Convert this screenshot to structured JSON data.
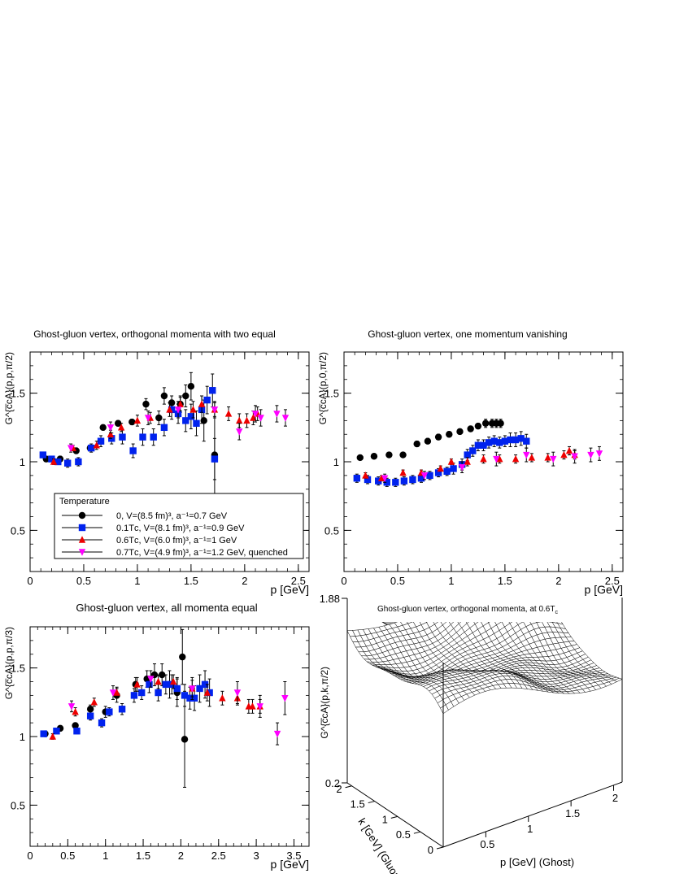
{
  "chart_data": [
    {
      "type": "scatter",
      "title": "Ghost-gluon vertex, orthogonal momenta with two equal",
      "xlabel": "p [GeV]",
      "ylabel": "G^{c̅cA}(p,p,π/2)",
      "xlim": [
        0,
        2.6
      ],
      "ylim": [
        0.2,
        1.8
      ],
      "xticks": [
        0,
        0.5,
        1,
        1.5,
        2,
        2.5
      ],
      "xticklabels": [
        "0",
        "0.5",
        "1",
        "1.5",
        "2",
        "2.5"
      ],
      "yticks": [
        0.5,
        1,
        1.5
      ],
      "yticklabels": [
        "0.5",
        "1",
        "1.5"
      ],
      "legend": {
        "title": "Temperature",
        "position": "bottom-left",
        "entries": [
          "0, V=(8.5 fm)³, a⁻¹=0.7 GeV",
          "0.1Tᴄ, V=(8.1 fm)³, a⁻¹=0.9 GeV",
          "0.6Tᴄ, V=(6.0 fm)³, a⁻¹=1 GeV",
          "0.7Tᴄ, V=(4.9 fm)³, a⁻¹=1.2 GeV, quenched"
        ]
      },
      "series": [
        {
          "name": "0",
          "marker": "circle",
          "color": "#000000",
          "x": [
            0.15,
            0.28,
            0.43,
            0.56,
            0.68,
            0.82,
            0.95,
            1.08,
            1.2,
            1.25,
            1.32,
            1.4,
            1.45,
            1.5,
            1.62,
            1.72
          ],
          "y": [
            1.02,
            1.02,
            1.08,
            1.1,
            1.25,
            1.28,
            1.29,
            1.42,
            1.32,
            1.48,
            1.43,
            1.42,
            1.48,
            1.55,
            1.3,
            1.05
          ],
          "err": [
            0.02,
            0.02,
            0.02,
            0.02,
            0.02,
            0.02,
            0.02,
            0.04,
            0.05,
            0.06,
            0.05,
            0.06,
            0.08,
            0.1,
            0.15,
            0.33
          ]
        },
        {
          "name": "0.1Tc",
          "marker": "square",
          "color": "#0022ee",
          "x": [
            0.12,
            0.2,
            0.26,
            0.35,
            0.45,
            0.57,
            0.66,
            0.76,
            0.86,
            0.96,
            1.05,
            1.15,
            1.25,
            1.32,
            1.38,
            1.45,
            1.5,
            1.55,
            1.6,
            1.65,
            1.7,
            1.72
          ],
          "y": [
            1.05,
            1.02,
            1.0,
            0.99,
            1.0,
            1.1,
            1.15,
            1.17,
            1.18,
            1.08,
            1.18,
            1.18,
            1.25,
            1.38,
            1.35,
            1.3,
            1.33,
            1.28,
            1.38,
            1.45,
            1.52,
            1.02
          ],
          "err": [
            0.02,
            0.02,
            0.02,
            0.03,
            0.03,
            0.03,
            0.04,
            0.04,
            0.05,
            0.05,
            0.06,
            0.06,
            0.06,
            0.07,
            0.07,
            0.08,
            0.09,
            0.09,
            0.1,
            0.1,
            0.12,
            0.15
          ]
        },
        {
          "name": "0.6Tc",
          "marker": "triangle-up",
          "color": "#ee0000",
          "x": [
            0.22,
            0.4,
            0.62,
            0.75,
            0.85,
            1.0,
            1.12,
            1.3,
            1.4,
            1.52,
            1.6,
            1.72,
            1.85,
            1.95,
            2.02,
            2.08,
            2.12
          ],
          "y": [
            1.0,
            1.1,
            1.12,
            1.2,
            1.25,
            1.3,
            1.32,
            1.38,
            1.42,
            1.38,
            1.42,
            1.38,
            1.35,
            1.3,
            1.3,
            1.32,
            1.35
          ],
          "err": [
            0.02,
            0.02,
            0.03,
            0.03,
            0.03,
            0.04,
            0.04,
            0.05,
            0.05,
            0.06,
            0.06,
            0.05,
            0.05,
            0.05,
            0.05,
            0.05,
            0.05
          ]
        },
        {
          "name": "0.7Tc quenched",
          "marker": "triangle-down",
          "color": "#ff00ff",
          "x": [
            0.38,
            0.75,
            1.1,
            1.38,
            1.72,
            1.95,
            2.1,
            2.15,
            2.3,
            2.38
          ],
          "y": [
            1.1,
            1.25,
            1.32,
            1.38,
            1.38,
            1.22,
            1.35,
            1.32,
            1.35,
            1.32
          ],
          "err": [
            0.03,
            0.04,
            0.05,
            0.06,
            0.06,
            0.06,
            0.06,
            0.06,
            0.06,
            0.06
          ]
        }
      ]
    },
    {
      "type": "scatter",
      "title": "Ghost-gluon vertex, one momentum vanishing",
      "xlabel": "p [GeV]",
      "ylabel": "G^{c̅cA}(p,0,π/2)",
      "xlim": [
        0,
        2.6
      ],
      "ylim": [
        0.2,
        1.8
      ],
      "xticks": [
        0,
        0.5,
        1,
        1.5,
        2,
        2.5
      ],
      "xticklabels": [
        "0",
        "0.5",
        "1",
        "1.5",
        "2",
        "2.5"
      ],
      "yticks": [
        0.5,
        1,
        1.5
      ],
      "yticklabels": [
        "0.5",
        "1",
        "1.5"
      ],
      "series": [
        {
          "name": "0",
          "marker": "circle",
          "color": "#000000",
          "x": [
            0.15,
            0.28,
            0.42,
            0.55,
            0.68,
            0.78,
            0.88,
            0.98,
            1.08,
            1.18,
            1.25,
            1.32,
            1.38,
            1.42,
            1.46
          ],
          "y": [
            1.03,
            1.04,
            1.05,
            1.05,
            1.13,
            1.15,
            1.18,
            1.2,
            1.22,
            1.24,
            1.26,
            1.28,
            1.28,
            1.28,
            1.28
          ],
          "err": [
            0.01,
            0.01,
            0.01,
            0.01,
            0.02,
            0.02,
            0.02,
            0.02,
            0.02,
            0.02,
            0.02,
            0.03,
            0.03,
            0.03,
            0.03
          ]
        },
        {
          "name": "0.1Tc",
          "marker": "square",
          "color": "#0022ee",
          "x": [
            0.12,
            0.22,
            0.32,
            0.4,
            0.48,
            0.56,
            0.64,
            0.72,
            0.8,
            0.88,
            0.96,
            1.02,
            1.1,
            1.15,
            1.2,
            1.25,
            1.3,
            1.35,
            1.4,
            1.45,
            1.5,
            1.55,
            1.6,
            1.65,
            1.7
          ],
          "y": [
            0.88,
            0.87,
            0.86,
            0.85,
            0.85,
            0.86,
            0.87,
            0.88,
            0.9,
            0.92,
            0.93,
            0.95,
            0.98,
            1.05,
            1.08,
            1.12,
            1.12,
            1.14,
            1.15,
            1.14,
            1.15,
            1.16,
            1.16,
            1.17,
            1.15
          ],
          "err": [
            0.03,
            0.03,
            0.03,
            0.03,
            0.03,
            0.03,
            0.03,
            0.03,
            0.03,
            0.03,
            0.03,
            0.04,
            0.04,
            0.04,
            0.04,
            0.04,
            0.04,
            0.04,
            0.04,
            0.04,
            0.04,
            0.05,
            0.05,
            0.05,
            0.05
          ]
        },
        {
          "name": "0.6Tc",
          "marker": "triangle-up",
          "color": "#ee0000",
          "x": [
            0.2,
            0.35,
            0.55,
            0.72,
            0.9,
            1.0,
            1.15,
            1.3,
            1.45,
            1.6,
            1.75,
            1.9,
            2.05,
            2.1,
            2.15
          ],
          "y": [
            0.9,
            0.88,
            0.92,
            0.92,
            0.95,
            1.0,
            1.0,
            1.02,
            1.02,
            1.02,
            1.03,
            1.03,
            1.05,
            1.08,
            1.05
          ],
          "err": [
            0.02,
            0.02,
            0.02,
            0.02,
            0.02,
            0.02,
            0.03,
            0.03,
            0.03,
            0.03,
            0.03,
            0.03,
            0.03,
            0.03,
            0.03
          ]
        },
        {
          "name": "0.7Tc quenched",
          "marker": "triangle-down",
          "color": "#ff00ff",
          "x": [
            0.38,
            0.75,
            1.1,
            1.42,
            1.7,
            1.95,
            2.15,
            2.3,
            2.38
          ],
          "y": [
            0.88,
            0.9,
            0.96,
            1.02,
            1.05,
            1.02,
            1.04,
            1.05,
            1.06
          ],
          "err": [
            0.03,
            0.03,
            0.04,
            0.05,
            0.05,
            0.05,
            0.05,
            0.05,
            0.05
          ]
        }
      ]
    },
    {
      "type": "scatter",
      "title": "Ghost-gluon vertex, all momenta equal",
      "xlabel": "p [GeV]",
      "ylabel": "G^{c̅cA}(p,p,π/3)",
      "xlim": [
        0,
        3.7
      ],
      "ylim": [
        0.2,
        1.8
      ],
      "xticks": [
        0,
        0.5,
        1,
        1.5,
        2,
        2.5,
        3,
        3.5
      ],
      "xticklabels": [
        "0",
        "0.5",
        "1",
        "1.5",
        "2",
        "2.5",
        "3",
        "3.5"
      ],
      "yticks": [
        0.5,
        1,
        1.5
      ],
      "yticklabels": [
        "0.5",
        "1",
        "1.5"
      ],
      "series": [
        {
          "name": "0",
          "marker": "circle",
          "color": "#000000",
          "x": [
            0.2,
            0.4,
            0.6,
            0.8,
            1.0,
            1.15,
            1.4,
            1.55,
            1.65,
            1.75,
            1.85,
            1.95,
            2.02,
            2.05
          ],
          "y": [
            1.02,
            1.06,
            1.08,
            1.2,
            1.18,
            1.3,
            1.38,
            1.42,
            1.45,
            1.45,
            1.38,
            1.32,
            1.58,
            0.98
          ],
          "err": [
            0.01,
            0.02,
            0.02,
            0.03,
            0.04,
            0.05,
            0.05,
            0.06,
            0.08,
            0.08,
            0.1,
            0.1,
            0.2,
            0.35
          ]
        },
        {
          "name": "0.1Tc",
          "marker": "square",
          "color": "#0022ee",
          "x": [
            0.18,
            0.35,
            0.62,
            0.8,
            0.95,
            1.05,
            1.22,
            1.38,
            1.48,
            1.58,
            1.7,
            1.8,
            1.88,
            1.95,
            2.05,
            2.12,
            2.18,
            2.25,
            2.32,
            2.38
          ],
          "y": [
            1.02,
            1.04,
            1.04,
            1.15,
            1.1,
            1.18,
            1.2,
            1.3,
            1.32,
            1.38,
            1.32,
            1.38,
            1.38,
            1.35,
            1.3,
            1.28,
            1.28,
            1.35,
            1.38,
            1.32
          ],
          "err": [
            0.02,
            0.02,
            0.02,
            0.03,
            0.03,
            0.03,
            0.04,
            0.05,
            0.05,
            0.06,
            0.06,
            0.07,
            0.07,
            0.08,
            0.08,
            0.08,
            0.09,
            0.1,
            0.1,
            0.1
          ]
        },
        {
          "name": "0.6Tc",
          "marker": "triangle-up",
          "color": "#ee0000",
          "x": [
            0.3,
            0.6,
            0.85,
            1.15,
            1.42,
            1.7,
            1.9,
            2.15,
            2.35,
            2.55,
            2.75,
            2.9,
            2.95,
            3.05
          ],
          "y": [
            1.0,
            1.18,
            1.25,
            1.32,
            1.38,
            1.4,
            1.4,
            1.35,
            1.32,
            1.28,
            1.28,
            1.22,
            1.22,
            1.22
          ],
          "err": [
            0.02,
            0.03,
            0.03,
            0.04,
            0.05,
            0.05,
            0.05,
            0.06,
            0.06,
            0.05,
            0.05,
            0.05,
            0.05,
            0.05
          ]
        },
        {
          "name": "0.7Tc quenched",
          "marker": "triangle-down",
          "color": "#ff00ff",
          "x": [
            0.55,
            1.1,
            1.6,
            2.15,
            2.75,
            3.05,
            3.28,
            3.38
          ],
          "y": [
            1.22,
            1.32,
            1.42,
            1.35,
            1.32,
            1.22,
            1.02,
            1.28
          ],
          "err": [
            0.04,
            0.05,
            0.06,
            0.08,
            0.08,
            0.08,
            0.08,
            0.12
          ]
        }
      ]
    },
    {
      "type": "surface",
      "title": "Ghost-gluon vertex, orthogonal momenta, at 0.6T",
      "title_sub": "c",
      "xlabel": "p [GeV] (Ghost)",
      "ylabel": "k [GeV] (Gluon)",
      "zlabel": "G^{c̅cA}(p,k,π/2)",
      "xlim": [
        0,
        2.1
      ],
      "ylim": [
        0,
        2.1
      ],
      "zlim": [
        0.2,
        1.88
      ],
      "xticks": [
        0.5,
        1,
        1.5,
        2
      ],
      "xticklabels": [
        "0.5",
        "1",
        "1.5",
        "2"
      ],
      "yticks": [
        0,
        0.5,
        1,
        1.5,
        2
      ],
      "yticklabels": [
        "0",
        "0.5",
        "1",
        "1.5",
        "2"
      ],
      "zticks": [
        0.2,
        1.88
      ],
      "zticklabels": [
        "0.2",
        "1.88"
      ]
    }
  ]
}
